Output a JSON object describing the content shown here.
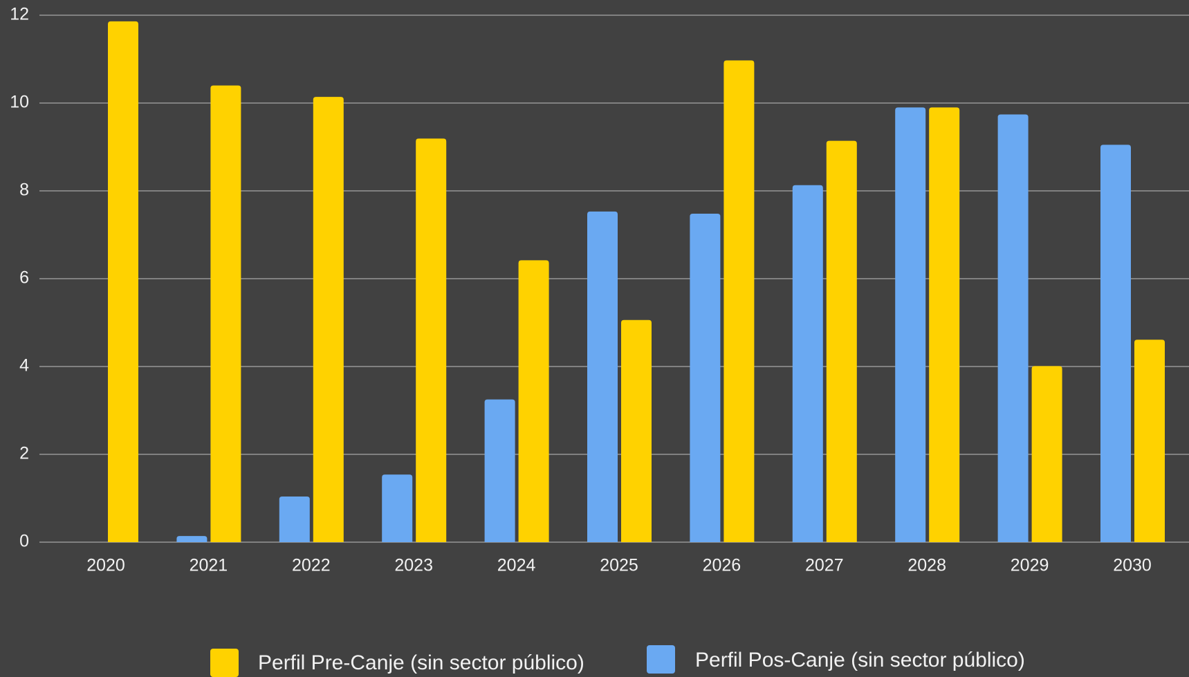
{
  "chart_data": {
    "type": "bar",
    "categories": [
      "2020",
      "2021",
      "2022",
      "2023",
      "2024",
      "2025",
      "2026",
      "2027",
      "2028",
      "2029",
      "2030"
    ],
    "series": [
      {
        "name": "Perfil Pre-Canje (sin sector público)",
        "color": "#ffd200",
        "values": [
          11.86,
          10.4,
          10.14,
          9.19,
          6.42,
          5.06,
          10.97,
          9.14,
          9.9,
          4.01,
          4.61
        ]
      },
      {
        "name": "Perfil Pos-Canje (sin sector público)",
        "color": "#6aa9f2",
        "values": [
          0,
          0.14,
          1.04,
          1.54,
          3.25,
          7.53,
          7.48,
          8.13,
          9.9,
          9.74,
          9.05
        ]
      }
    ],
    "ylim": [
      0,
      12
    ],
    "yticks": [
      0,
      2,
      4,
      6,
      8,
      10,
      12
    ],
    "grid": true,
    "legend": "bottom"
  }
}
